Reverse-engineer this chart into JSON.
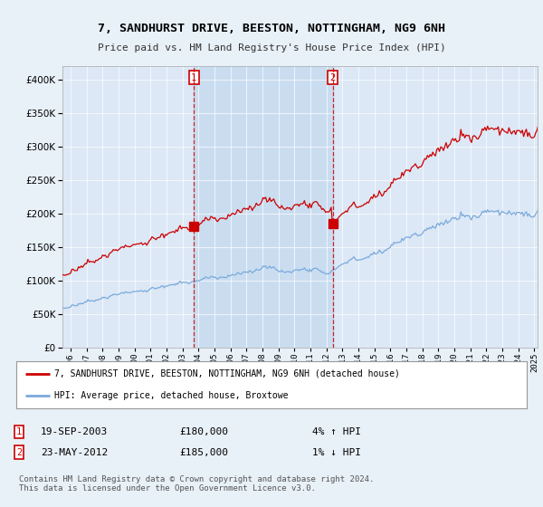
{
  "title": "7, SANDHURST DRIVE, BEESTON, NOTTINGHAM, NG9 6NH",
  "subtitle": "Price paid vs. HM Land Registry's House Price Index (HPI)",
  "sale1": {
    "date": "19-SEP-2003",
    "price": 180000,
    "hpi_pct": "4%",
    "direction": "↑"
  },
  "sale2": {
    "date": "23-MAY-2012",
    "price": 185000,
    "hpi_pct": "1%",
    "direction": "↓"
  },
  "legend_line1": "7, SANDHURST DRIVE, BEESTON, NOTTINGHAM, NG9 6NH (detached house)",
  "legend_line2": "HPI: Average price, detached house, Broxtowe",
  "footnote": "Contains HM Land Registry data © Crown copyright and database right 2024.\nThis data is licensed under the Open Government Licence v3.0.",
  "sale1_x": 2003.72,
  "sale2_x": 2012.39,
  "background_color": "#e8f0f8",
  "plot_bg": "#dce8f5",
  "shade_color": "#c8dcf0",
  "line_red": "#cc0000",
  "line_blue": "#7aaadd",
  "ylim": [
    0,
    420000
  ],
  "xlim": [
    1995.5,
    2025.2
  ],
  "xtick_start": 1996,
  "xtick_end": 2025
}
